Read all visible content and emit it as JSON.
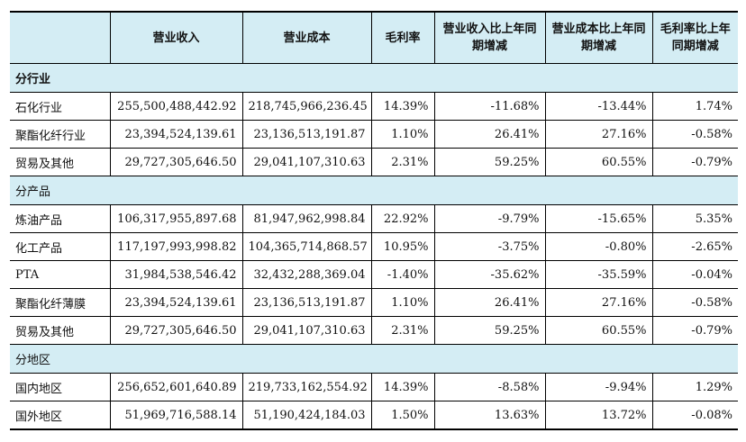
{
  "headers": [
    "",
    "营业收入",
    "营业成本",
    "毛利率",
    "营业收入比上年同期增减",
    "营业成本比上年同期增减",
    "毛利率比上年同期增减"
  ],
  "sections": [
    {
      "title": "分行业",
      "rows": [
        [
          "石化行业",
          "255,500,488,442.92",
          "218,745,966,236.45",
          "14.39%",
          "-11.68%",
          "-13.44%",
          "1.74%"
        ],
        [
          "聚酯化纤行业",
          "23,394,524,139.61",
          "23,136,513,191.87",
          "1.10%",
          "26.41%",
          "27.16%",
          "-0.58%"
        ],
        [
          "贸易及其他",
          "29,727,305,646.50",
          "29,041,107,310.63",
          "2.31%",
          "59.25%",
          "60.55%",
          "-0.79%"
        ]
      ]
    },
    {
      "title": "分产品",
      "rows": [
        [
          "炼油产品",
          "106,317,955,897.68",
          "81,947,962,998.84",
          "22.92%",
          "-9.79%",
          "-15.65%",
          "5.35%"
        ],
        [
          "化工产品",
          "117,197,993,998.82",
          "104,365,714,868.57",
          "10.95%",
          "-3.75%",
          "-0.80%",
          "-2.65%"
        ],
        [
          "PTA",
          "31,984,538,546.42",
          "32,432,288,369.04",
          "-1.40%",
          "-35.62%",
          "-35.59%",
          "-0.04%"
        ],
        [
          "聚酯化纤薄膜",
          "23,394,524,139.61",
          "23,136,513,191.87",
          "1.10%",
          "26.41%",
          "27.16%",
          "-0.58%"
        ],
        [
          "贸易及其他",
          "29,727,305,646.50",
          "29,041,107,310.63",
          "2.31%",
          "59.25%",
          "60.55%",
          "-0.79%"
        ]
      ]
    },
    {
      "title": "分地区",
      "rows": [
        [
          "国内地区",
          "256,652,601,640.89",
          "219,733,162,554.92",
          "14.39%",
          "-8.58%",
          "-9.94%",
          "1.29%"
        ],
        [
          "国外地区",
          "51,969,716,588.14",
          "51,190,424,184.03",
          "1.50%",
          "13.63%",
          "13.72%",
          "-0.08%"
        ]
      ]
    }
  ]
}
